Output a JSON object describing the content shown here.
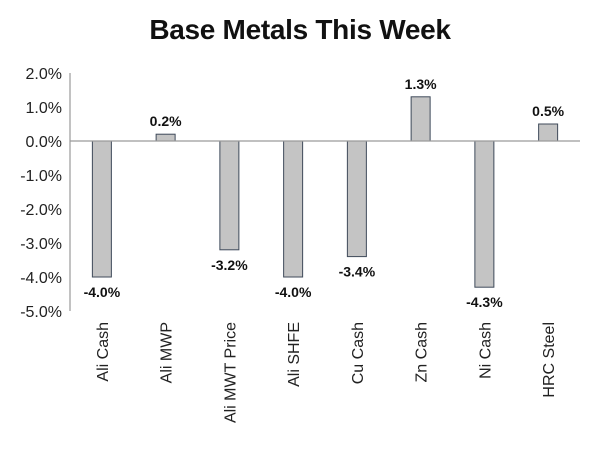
{
  "chart_data": {
    "type": "bar",
    "title": "Base Metals This Week",
    "categories": [
      "Ali Cash",
      "Ali MWP",
      "Ali MWT Price",
      "Ali SHFE",
      "Cu Cash",
      "Zn Cash",
      "Ni Cash",
      "HRC Steel"
    ],
    "values": [
      -4.0,
      0.2,
      -3.2,
      -4.0,
      -3.4,
      1.3,
      -4.3,
      0.5
    ],
    "value_labels": [
      "-4.0%",
      "0.2%",
      "-3.2%",
      "-4.0%",
      "-3.4%",
      "1.3%",
      "-4.3%",
      "0.5%"
    ],
    "y_ticks": [
      2.0,
      1.0,
      0.0,
      -1.0,
      -2.0,
      -3.0,
      -4.0,
      -5.0
    ],
    "y_tick_labels": [
      "2.0%",
      "1.0%",
      "0.0%",
      "-1.0%",
      "-2.0%",
      "-3.0%",
      "-4.0%",
      "-5.0%"
    ],
    "ylim": [
      -5.0,
      2.0
    ],
    "xlabel": "",
    "ylabel": "",
    "grid": false,
    "legend": "none",
    "colors": {
      "bar_fill": "#c4c4c4",
      "bar_stroke": "#3f4a5a",
      "axis": "#9a9a9a"
    }
  }
}
